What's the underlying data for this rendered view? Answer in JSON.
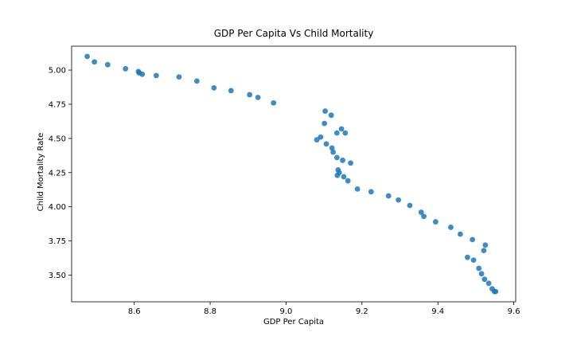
{
  "chart_data": {
    "type": "scatter",
    "title": "GDP Per Capita Vs Child Mortality",
    "xlabel": "GDP Per Capita",
    "ylabel": "Child Mortality Rate",
    "xlim": [
      8.435,
      9.605
    ],
    "ylim": [
      3.305,
      5.175
    ],
    "x_ticks": [
      8.6,
      8.8,
      9.0,
      9.2,
      9.4,
      9.6
    ],
    "x_tick_labels": [
      "8.6",
      "8.8",
      "9.0",
      "9.2",
      "9.4",
      "9.6"
    ],
    "y_ticks": [
      3.5,
      3.75,
      4.0,
      4.25,
      4.5,
      4.75,
      5.0
    ],
    "y_tick_labels": [
      "3.50",
      "3.75",
      "4.00",
      "4.25",
      "4.50",
      "4.75",
      "5.00"
    ],
    "grid": false,
    "marker_color": "#1f77b4",
    "series": [
      {
        "x": [
          8.476,
          8.495,
          8.53,
          8.577,
          8.611,
          8.613,
          8.621,
          8.658,
          8.718,
          8.765,
          8.81,
          8.855,
          8.904,
          8.926,
          8.967,
          9.103,
          9.119,
          9.101,
          9.146,
          9.134,
          9.156,
          9.091,
          9.081,
          9.106,
          9.121,
          9.124,
          9.134,
          9.149,
          9.17,
          9.137,
          9.14,
          9.152,
          9.135,
          9.163,
          9.188,
          9.224,
          9.27,
          9.296,
          9.326,
          9.356,
          9.363,
          9.394,
          9.434,
          9.459,
          9.491,
          9.525,
          9.521,
          9.478,
          9.494,
          9.508,
          9.515,
          9.523,
          9.534,
          9.543,
          9.549,
          9.552
        ],
        "y": [
          5.1,
          5.06,
          5.04,
          5.01,
          4.99,
          4.98,
          4.97,
          4.96,
          4.95,
          4.92,
          4.87,
          4.85,
          4.82,
          4.8,
          4.76,
          4.7,
          4.67,
          4.61,
          4.57,
          4.54,
          4.54,
          4.51,
          4.49,
          4.46,
          4.43,
          4.4,
          4.36,
          4.34,
          4.32,
          4.27,
          4.25,
          4.22,
          4.23,
          4.19,
          4.13,
          4.11,
          4.08,
          4.05,
          4.01,
          3.96,
          3.93,
          3.89,
          3.85,
          3.8,
          3.76,
          3.72,
          3.68,
          3.63,
          3.61,
          3.55,
          3.51,
          3.47,
          3.44,
          3.4,
          3.38,
          3.38
        ]
      }
    ]
  }
}
